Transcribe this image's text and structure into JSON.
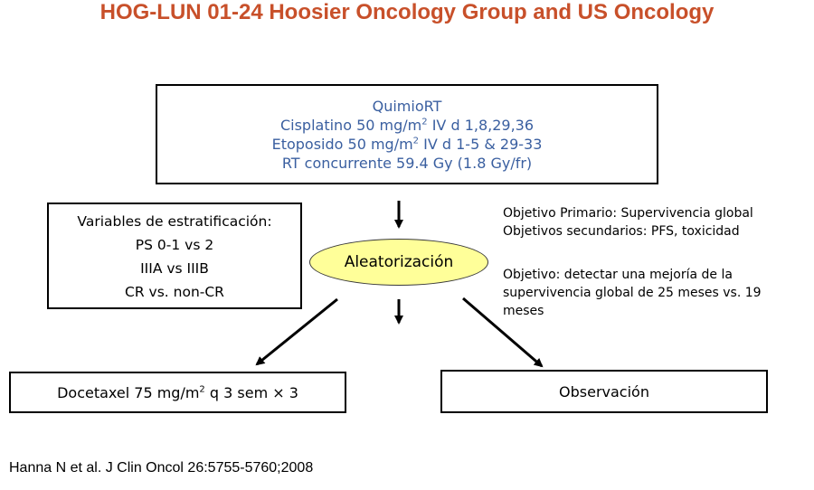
{
  "title": "HOG-LUN 01-24 Hoosier Oncology Group and US Oncology",
  "treatment_box": {
    "line1": "QuimioRT",
    "line2_pre": "Cisplatino 50 mg/m",
    "line2_sup": "2",
    "line2_post": " IV d 1,8,29,36",
    "line3_pre": "Etoposido 50 mg/m",
    "line3_sup": "2",
    "line3_post": " IV d 1-5 & 29-33",
    "line4": "RT concurrente 59.4 Gy (1.8 Gy/fr)"
  },
  "stratification": {
    "heading": "Variables de estratificación:",
    "items": [
      "PS 0-1 vs 2",
      "IIIA vs IIIB",
      "CR vs. non-CR"
    ]
  },
  "randomization": "Aleatorización",
  "objectives": {
    "primary": "Objetivo Primario: Supervivencia global",
    "secondary": "Objetivos secundarios: PFS, toxicidad",
    "goal": "Objetivo: detectar una mejoría de la supervivencia global de 25 meses vs. 19 meses"
  },
  "arm_docetaxel": {
    "pre": "Docetaxel 75 mg/m",
    "sup": "2",
    "post": " q 3 sem × 3"
  },
  "arm_observation": "Observación",
  "citation": "Hanna N et al. J Clin Oncol 26:5755-5760;2008"
}
